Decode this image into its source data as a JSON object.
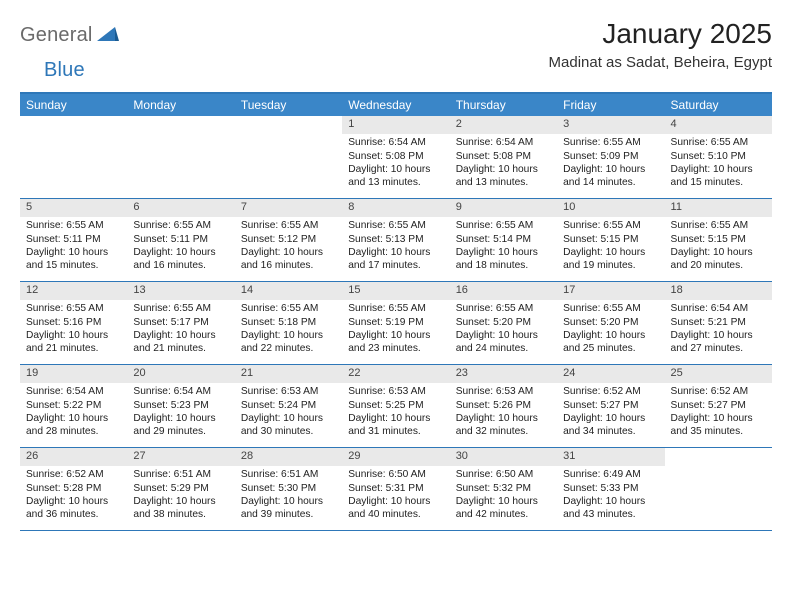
{
  "brand": {
    "word1": "General",
    "word2": "Blue"
  },
  "title": "January 2025",
  "location": "Madinat as Sadat, Beheira, Egypt",
  "colors": {
    "header_bg": "#3a86c8",
    "border": "#2e77b8",
    "daynum_bg": "#e9e9e9",
    "text": "#222222",
    "logo_gray": "#6a6a6a"
  },
  "day_names": [
    "Sunday",
    "Monday",
    "Tuesday",
    "Wednesday",
    "Thursday",
    "Friday",
    "Saturday"
  ],
  "weeks": [
    [
      {
        "n": "",
        "sunrise": "",
        "sunset": "",
        "daylight1": "",
        "daylight2": ""
      },
      {
        "n": "",
        "sunrise": "",
        "sunset": "",
        "daylight1": "",
        "daylight2": ""
      },
      {
        "n": "",
        "sunrise": "",
        "sunset": "",
        "daylight1": "",
        "daylight2": ""
      },
      {
        "n": "1",
        "sunrise": "Sunrise: 6:54 AM",
        "sunset": "Sunset: 5:08 PM",
        "daylight1": "Daylight: 10 hours",
        "daylight2": "and 13 minutes."
      },
      {
        "n": "2",
        "sunrise": "Sunrise: 6:54 AM",
        "sunset": "Sunset: 5:08 PM",
        "daylight1": "Daylight: 10 hours",
        "daylight2": "and 13 minutes."
      },
      {
        "n": "3",
        "sunrise": "Sunrise: 6:55 AM",
        "sunset": "Sunset: 5:09 PM",
        "daylight1": "Daylight: 10 hours",
        "daylight2": "and 14 minutes."
      },
      {
        "n": "4",
        "sunrise": "Sunrise: 6:55 AM",
        "sunset": "Sunset: 5:10 PM",
        "daylight1": "Daylight: 10 hours",
        "daylight2": "and 15 minutes."
      }
    ],
    [
      {
        "n": "5",
        "sunrise": "Sunrise: 6:55 AM",
        "sunset": "Sunset: 5:11 PM",
        "daylight1": "Daylight: 10 hours",
        "daylight2": "and 15 minutes."
      },
      {
        "n": "6",
        "sunrise": "Sunrise: 6:55 AM",
        "sunset": "Sunset: 5:11 PM",
        "daylight1": "Daylight: 10 hours",
        "daylight2": "and 16 minutes."
      },
      {
        "n": "7",
        "sunrise": "Sunrise: 6:55 AM",
        "sunset": "Sunset: 5:12 PM",
        "daylight1": "Daylight: 10 hours",
        "daylight2": "and 16 minutes."
      },
      {
        "n": "8",
        "sunrise": "Sunrise: 6:55 AM",
        "sunset": "Sunset: 5:13 PM",
        "daylight1": "Daylight: 10 hours",
        "daylight2": "and 17 minutes."
      },
      {
        "n": "9",
        "sunrise": "Sunrise: 6:55 AM",
        "sunset": "Sunset: 5:14 PM",
        "daylight1": "Daylight: 10 hours",
        "daylight2": "and 18 minutes."
      },
      {
        "n": "10",
        "sunrise": "Sunrise: 6:55 AM",
        "sunset": "Sunset: 5:15 PM",
        "daylight1": "Daylight: 10 hours",
        "daylight2": "and 19 minutes."
      },
      {
        "n": "11",
        "sunrise": "Sunrise: 6:55 AM",
        "sunset": "Sunset: 5:15 PM",
        "daylight1": "Daylight: 10 hours",
        "daylight2": "and 20 minutes."
      }
    ],
    [
      {
        "n": "12",
        "sunrise": "Sunrise: 6:55 AM",
        "sunset": "Sunset: 5:16 PM",
        "daylight1": "Daylight: 10 hours",
        "daylight2": "and 21 minutes."
      },
      {
        "n": "13",
        "sunrise": "Sunrise: 6:55 AM",
        "sunset": "Sunset: 5:17 PM",
        "daylight1": "Daylight: 10 hours",
        "daylight2": "and 21 minutes."
      },
      {
        "n": "14",
        "sunrise": "Sunrise: 6:55 AM",
        "sunset": "Sunset: 5:18 PM",
        "daylight1": "Daylight: 10 hours",
        "daylight2": "and 22 minutes."
      },
      {
        "n": "15",
        "sunrise": "Sunrise: 6:55 AM",
        "sunset": "Sunset: 5:19 PM",
        "daylight1": "Daylight: 10 hours",
        "daylight2": "and 23 minutes."
      },
      {
        "n": "16",
        "sunrise": "Sunrise: 6:55 AM",
        "sunset": "Sunset: 5:20 PM",
        "daylight1": "Daylight: 10 hours",
        "daylight2": "and 24 minutes."
      },
      {
        "n": "17",
        "sunrise": "Sunrise: 6:55 AM",
        "sunset": "Sunset: 5:20 PM",
        "daylight1": "Daylight: 10 hours",
        "daylight2": "and 25 minutes."
      },
      {
        "n": "18",
        "sunrise": "Sunrise: 6:54 AM",
        "sunset": "Sunset: 5:21 PM",
        "daylight1": "Daylight: 10 hours",
        "daylight2": "and 27 minutes."
      }
    ],
    [
      {
        "n": "19",
        "sunrise": "Sunrise: 6:54 AM",
        "sunset": "Sunset: 5:22 PM",
        "daylight1": "Daylight: 10 hours",
        "daylight2": "and 28 minutes."
      },
      {
        "n": "20",
        "sunrise": "Sunrise: 6:54 AM",
        "sunset": "Sunset: 5:23 PM",
        "daylight1": "Daylight: 10 hours",
        "daylight2": "and 29 minutes."
      },
      {
        "n": "21",
        "sunrise": "Sunrise: 6:53 AM",
        "sunset": "Sunset: 5:24 PM",
        "daylight1": "Daylight: 10 hours",
        "daylight2": "and 30 minutes."
      },
      {
        "n": "22",
        "sunrise": "Sunrise: 6:53 AM",
        "sunset": "Sunset: 5:25 PM",
        "daylight1": "Daylight: 10 hours",
        "daylight2": "and 31 minutes."
      },
      {
        "n": "23",
        "sunrise": "Sunrise: 6:53 AM",
        "sunset": "Sunset: 5:26 PM",
        "daylight1": "Daylight: 10 hours",
        "daylight2": "and 32 minutes."
      },
      {
        "n": "24",
        "sunrise": "Sunrise: 6:52 AM",
        "sunset": "Sunset: 5:27 PM",
        "daylight1": "Daylight: 10 hours",
        "daylight2": "and 34 minutes."
      },
      {
        "n": "25",
        "sunrise": "Sunrise: 6:52 AM",
        "sunset": "Sunset: 5:27 PM",
        "daylight1": "Daylight: 10 hours",
        "daylight2": "and 35 minutes."
      }
    ],
    [
      {
        "n": "26",
        "sunrise": "Sunrise: 6:52 AM",
        "sunset": "Sunset: 5:28 PM",
        "daylight1": "Daylight: 10 hours",
        "daylight2": "and 36 minutes."
      },
      {
        "n": "27",
        "sunrise": "Sunrise: 6:51 AM",
        "sunset": "Sunset: 5:29 PM",
        "daylight1": "Daylight: 10 hours",
        "daylight2": "and 38 minutes."
      },
      {
        "n": "28",
        "sunrise": "Sunrise: 6:51 AM",
        "sunset": "Sunset: 5:30 PM",
        "daylight1": "Daylight: 10 hours",
        "daylight2": "and 39 minutes."
      },
      {
        "n": "29",
        "sunrise": "Sunrise: 6:50 AM",
        "sunset": "Sunset: 5:31 PM",
        "daylight1": "Daylight: 10 hours",
        "daylight2": "and 40 minutes."
      },
      {
        "n": "30",
        "sunrise": "Sunrise: 6:50 AM",
        "sunset": "Sunset: 5:32 PM",
        "daylight1": "Daylight: 10 hours",
        "daylight2": "and 42 minutes."
      },
      {
        "n": "31",
        "sunrise": "Sunrise: 6:49 AM",
        "sunset": "Sunset: 5:33 PM",
        "daylight1": "Daylight: 10 hours",
        "daylight2": "and 43 minutes."
      },
      {
        "n": "",
        "sunrise": "",
        "sunset": "",
        "daylight1": "",
        "daylight2": ""
      }
    ]
  ]
}
